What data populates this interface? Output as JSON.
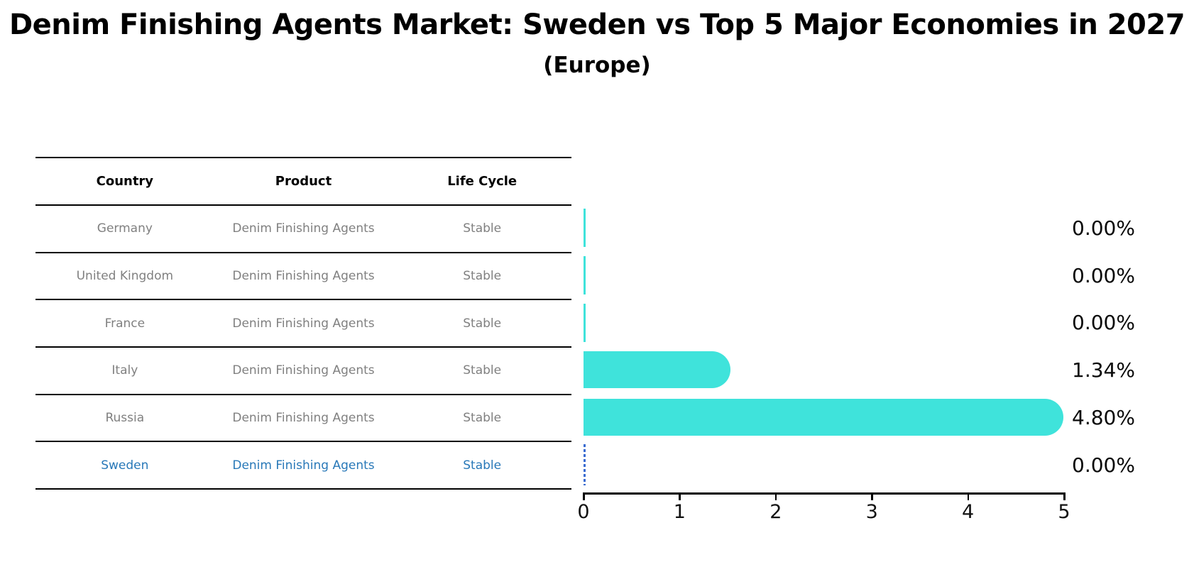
{
  "title": "Denim Finishing Agents Market: Sweden vs Top 5 Major Economies in 2027",
  "subtitle": "(Europe)",
  "table": {
    "headers": [
      "Country",
      "Product",
      "Life Cycle"
    ],
    "rows": [
      {
        "country": "Germany",
        "product": "Denim Finishing Agents",
        "life_cycle": "Stable",
        "highlighted": false
      },
      {
        "country": "United Kingdom",
        "product": "Denim Finishing Agents",
        "life_cycle": "Stable",
        "highlighted": false
      },
      {
        "country": "France",
        "product": "Denim Finishing Agents",
        "life_cycle": "Stable",
        "highlighted": false
      },
      {
        "country": "Italy",
        "product": "Denim Finishing Agents",
        "life_cycle": "Stable",
        "highlighted": false
      },
      {
        "country": "Russia",
        "product": "Denim Finishing Agents",
        "life_cycle": "Stable",
        "highlighted": false
      },
      {
        "country": "Sweden",
        "product": "Denim Finishing Agents",
        "life_cycle": "Stable",
        "highlighted": true
      }
    ]
  },
  "chart_data": {
    "type": "bar",
    "orientation": "horizontal",
    "title": "Denim Finishing Agents Market: Sweden vs Top 5 Major Economies in 2027 (Europe)",
    "categories": [
      "Germany",
      "United Kingdom",
      "France",
      "Italy",
      "Russia",
      "Sweden"
    ],
    "values": [
      0.0,
      0.0,
      0.0,
      1.34,
      4.8,
      0.0
    ],
    "value_labels": [
      "0.00%",
      "0.00%",
      "0.00%",
      "1.34%",
      "4.80%",
      "0.00%"
    ],
    "xlabel": "",
    "ylabel": "",
    "xlim": [
      0,
      5
    ],
    "xticks": [
      "0",
      "1",
      "2",
      "3",
      "4",
      "5"
    ],
    "grid": false,
    "legend": false,
    "bar_color": "#3FE3DB",
    "highlight_index": 5,
    "highlight_marker": "dashed-zero-line",
    "highlight_marker_color": "#3A6BD0",
    "highlight_text_color": "#2878B8"
  },
  "colors": {
    "background": "#ffffff",
    "text": "#000000",
    "muted_text": "#808080",
    "table_line": "#000000",
    "axis_line": "#000000"
  }
}
